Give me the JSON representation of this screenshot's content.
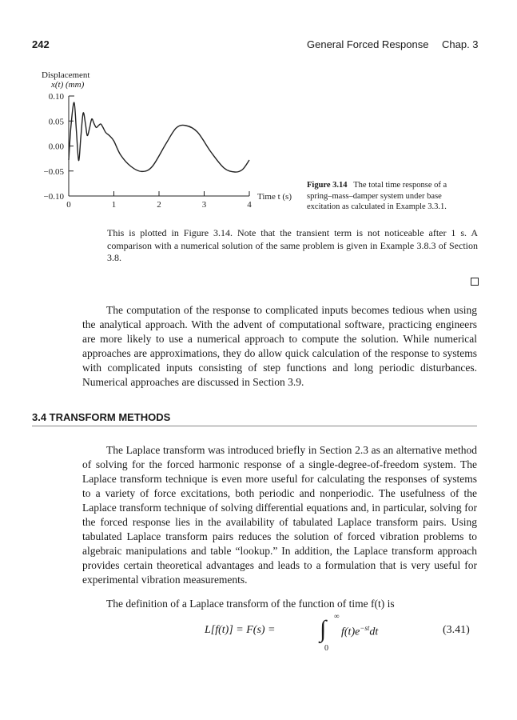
{
  "header": {
    "page_number": "242",
    "running_title": "General Forced Response",
    "chapter": "Chap. 3"
  },
  "figure": {
    "caption_label": "Figure 3.14",
    "caption_text": "The total time response of a spring–mass–damper system under base excitation as calculated in Example 3.3.1."
  },
  "chart_data": {
    "type": "line",
    "ylabel_line1": "Displacement",
    "ylabel_line2": "x(t) (mm)",
    "xlabel": "Time t (s)",
    "xlim": [
      0,
      4
    ],
    "ylim": [
      -0.1,
      0.1
    ],
    "xticks": [
      "0",
      "1",
      "2",
      "3",
      "4"
    ],
    "yticks": [
      "0.10",
      "0.05",
      "0.00",
      "−0.05",
      "−0.10"
    ],
    "grid": false,
    "x": [
      0,
      0.05,
      0.12,
      0.17,
      0.22,
      0.27,
      0.32,
      0.37,
      0.41,
      0.46,
      0.51,
      0.56,
      0.61,
      0.66,
      0.71,
      0.76,
      0.82,
      0.91,
      1.0,
      1.15,
      1.38,
      1.62,
      1.85,
      2.15,
      2.38,
      2.59,
      2.85,
      3.15,
      3.44,
      3.68,
      3.85,
      4.0
    ],
    "y": [
      -0.028,
      0.04,
      0.087,
      0.03,
      -0.029,
      0.02,
      0.066,
      0.045,
      0.021,
      0.035,
      0.054,
      0.045,
      0.037,
      0.041,
      0.044,
      0.037,
      0.027,
      0.02,
      0.01,
      -0.018,
      -0.041,
      -0.051,
      -0.041,
      0.004,
      0.036,
      0.041,
      0.028,
      -0.012,
      -0.044,
      -0.052,
      -0.047,
      -0.028
    ]
  },
  "paragraphs": {
    "p1": "This is plotted in Figure 3.14. Note that the transient term is not noticeable after 1 s. A comparison with a numerical solution of the same problem is given in Example 3.8.3 of Section 3.8.",
    "p2": "The computation of the response to complicated inputs becomes tedious when using the analytical approach. With the advent of computational software, practicing engineers are more likely to use a numerical approach to compute the solution. While numerical approaches are approximations, they do allow quick calculation of the response to systems with complicated inputs consisting of step functions and long periodic disturbances. Numerical approaches are discussed in Section 3.9.",
    "section_heading": "3.4 TRANSFORM METHODS",
    "p3": "The Laplace transform was introduced briefly in Section 2.3 as an alternative method of solving for the forced harmonic response of a single-degree-of-freedom system. The Laplace transform technique is even more useful for calculating the responses of systems to a variety of force excitations, both periodic and nonperiodic. The usefulness of the Laplace transform technique of solving differential equations and, in particular, solving for the forced response lies in the availability of tabulated Laplace transform pairs. Using tabulated Laplace transform pairs reduces the solution of forced vibration problems to algebraic manipulations and table “lookup.” In addition, the Laplace transform approach provides certain theoretical advantages and leads to a formulation that is very useful for experimental vibration measurements.",
    "p4": "The definition of a Laplace transform of the function of time f(t) is"
  },
  "equation": {
    "lhs": "L[f(t)] = F(s) =",
    "integrand": "f(t)e",
    "exponent": "−st",
    "dt": "dt",
    "upper": "∞",
    "lower": "0",
    "number": "(3.41)"
  }
}
